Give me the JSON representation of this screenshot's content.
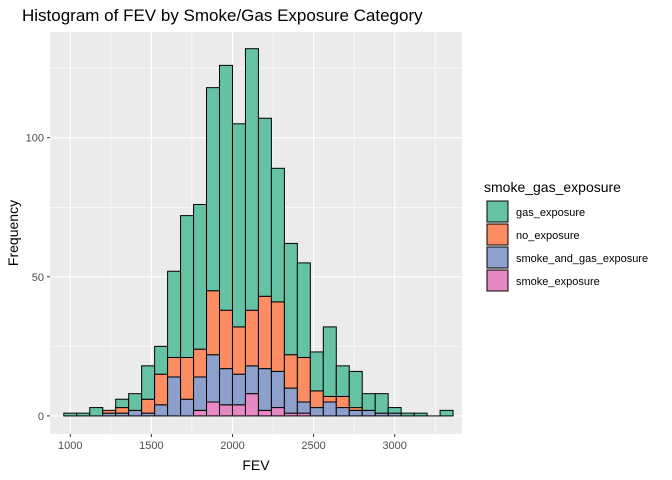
{
  "chart_data": {
    "type": "bar",
    "stacked": true,
    "title": "Histogram of FEV by Smoke/Gas Exposure Category",
    "xlabel": "FEV",
    "ylabel": "Frequency",
    "xlim": [
      875,
      3415
    ],
    "ylim": [
      -6.5,
      138
    ],
    "x_ticks": [
      1000,
      1500,
      2000,
      2500,
      3000
    ],
    "y_ticks": [
      0,
      50,
      100
    ],
    "grid": true,
    "legend_title": "smoke_gas_exposure",
    "legend_position": "right",
    "bin_centers": [
      1000,
      1080,
      1160,
      1240,
      1320,
      1400,
      1480,
      1560,
      1640,
      1720,
      1800,
      1880,
      1960,
      2040,
      2120,
      2200,
      2280,
      2360,
      2440,
      2520,
      2600,
      2680,
      2760,
      2840,
      2920,
      3000,
      3080,
      3160,
      3240,
      3320
    ],
    "series": [
      {
        "name": "smoke_exposure",
        "color": "#e78ac3",
        "values": [
          0,
          0,
          0,
          0,
          0,
          0,
          0,
          0,
          0,
          0,
          2,
          5,
          4,
          4,
          8,
          2,
          3,
          1,
          1,
          0,
          0,
          0,
          0,
          0,
          0,
          0,
          0,
          0,
          0,
          0
        ]
      },
      {
        "name": "smoke_and_gas_exposure",
        "color": "#8da0cb",
        "values": [
          0,
          0,
          0,
          1,
          1,
          2,
          1,
          4,
          14,
          6,
          12,
          17,
          13,
          11,
          10,
          15,
          13,
          9,
          4,
          3,
          5,
          3,
          2,
          2,
          1,
          1,
          0,
          0,
          0,
          0
        ]
      },
      {
        "name": "no_exposure",
        "color": "#fc8d62",
        "values": [
          0,
          0,
          0,
          1,
          2,
          0,
          5,
          11,
          7,
          15,
          10,
          23,
          21,
          17,
          20,
          26,
          25,
          12,
          16,
          6,
          2,
          4,
          1,
          0,
          0,
          0,
          0,
          0,
          0,
          0
        ]
      },
      {
        "name": "gas_exposure",
        "color": "#66c2a5",
        "values": [
          1,
          1,
          3,
          0,
          3,
          6,
          12,
          10,
          31,
          51,
          52,
          73,
          88,
          73,
          94,
          64,
          48,
          40,
          34,
          14,
          25,
          11,
          13,
          6,
          7,
          2,
          1,
          1,
          0,
          2
        ]
      }
    ],
    "legend_order": [
      "gas_exposure",
      "no_exposure",
      "smoke_and_gas_exposure",
      "smoke_exposure"
    ]
  }
}
